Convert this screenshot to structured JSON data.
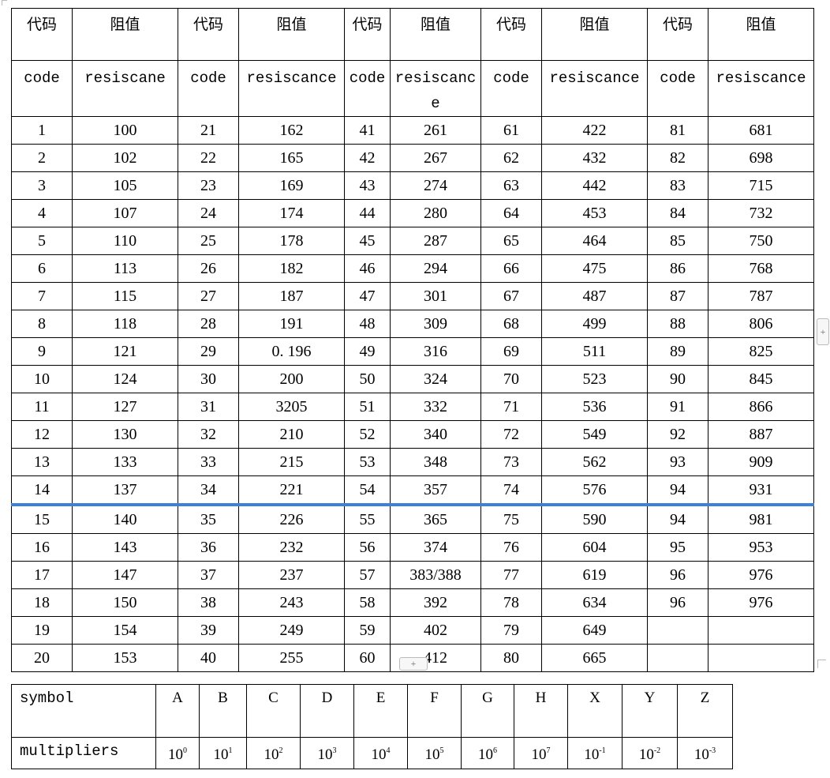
{
  "main_table": {
    "header_cn": [
      "代码",
      "阻值",
      "代码",
      "阻值",
      "代码",
      "阻值",
      "代码",
      "阻值",
      "代码",
      "阻值"
    ],
    "header_en": [
      "code",
      "resiscane",
      "code",
      "resiscance",
      "code",
      "resiscance",
      "code",
      "resiscance",
      "code",
      "resiscance"
    ],
    "selected_row_index": 13,
    "rows": [
      [
        "1",
        "100",
        "21",
        "162",
        "41",
        "261",
        "61",
        "422",
        "81",
        "681"
      ],
      [
        "2",
        "102",
        "22",
        "165",
        "42",
        "267",
        "62",
        "432",
        "82",
        "698"
      ],
      [
        "3",
        "105",
        "23",
        "169",
        "43",
        "274",
        "63",
        "442",
        "83",
        "715"
      ],
      [
        "4",
        "107",
        "24",
        "174",
        "44",
        "280",
        "64",
        "453",
        "84",
        "732"
      ],
      [
        "5",
        "110",
        "25",
        "178",
        "45",
        "287",
        "65",
        "464",
        "85",
        "750"
      ],
      [
        "6",
        "113",
        "26",
        "182",
        "46",
        "294",
        "66",
        "475",
        "86",
        "768"
      ],
      [
        "7",
        "115",
        "27",
        "187",
        "47",
        "301",
        "67",
        "487",
        "87",
        "787"
      ],
      [
        "8",
        "118",
        "28",
        "191",
        "48",
        "309",
        "68",
        "499",
        "88",
        "806"
      ],
      [
        "9",
        "121",
        "29",
        "0. 196",
        "49",
        "316",
        "69",
        "511",
        "89",
        "825"
      ],
      [
        "10",
        "124",
        "30",
        "200",
        "50",
        "324",
        "70",
        "523",
        "90",
        "845"
      ],
      [
        "11",
        "127",
        "31",
        "3205",
        "51",
        "332",
        "71",
        "536",
        "91",
        "866"
      ],
      [
        "12",
        "130",
        "32",
        "210",
        "52",
        "340",
        "72",
        "549",
        "92",
        "887"
      ],
      [
        "13",
        "133",
        "33",
        "215",
        "53",
        "348",
        "73",
        "562",
        "93",
        "909"
      ],
      [
        "14",
        "137",
        "34",
        "221",
        "54",
        "357",
        "74",
        "576",
        "94",
        "931"
      ],
      [
        "15",
        "140",
        "35",
        "226",
        "55",
        "365",
        "75",
        "590",
        "94",
        "981"
      ],
      [
        "16",
        "143",
        "36",
        "232",
        "56",
        "374",
        "76",
        "604",
        "95",
        "953"
      ],
      [
        "17",
        "147",
        "37",
        "237",
        "57",
        "383/388",
        "77",
        "619",
        "96",
        "976"
      ],
      [
        "18",
        "150",
        "38",
        "243",
        "58",
        "392",
        "78",
        "634",
        "96",
        "976"
      ],
      [
        "19",
        "154",
        "39",
        "249",
        "59",
        "402",
        "79",
        "649",
        "",
        ""
      ],
      [
        "20",
        "153",
        "40",
        "255",
        "60",
        "412",
        "80",
        "665",
        "",
        ""
      ]
    ]
  },
  "symbol_table": {
    "symbol_label": "symbol",
    "multipliers_label": "multipliers",
    "symbols": [
      "A",
      "B",
      "C",
      "D",
      "E",
      "F",
      "G",
      "H",
      "X",
      "Y",
      "Z"
    ],
    "exponents": [
      "0",
      "1",
      "2",
      "3",
      "4",
      "5",
      "6",
      "7",
      "-1",
      "-2",
      "-3"
    ],
    "base": "10"
  },
  "controls": {
    "add_row_label": "+",
    "add_col_label": "+"
  },
  "colors": {
    "selection_line": "#3c7fdc"
  }
}
